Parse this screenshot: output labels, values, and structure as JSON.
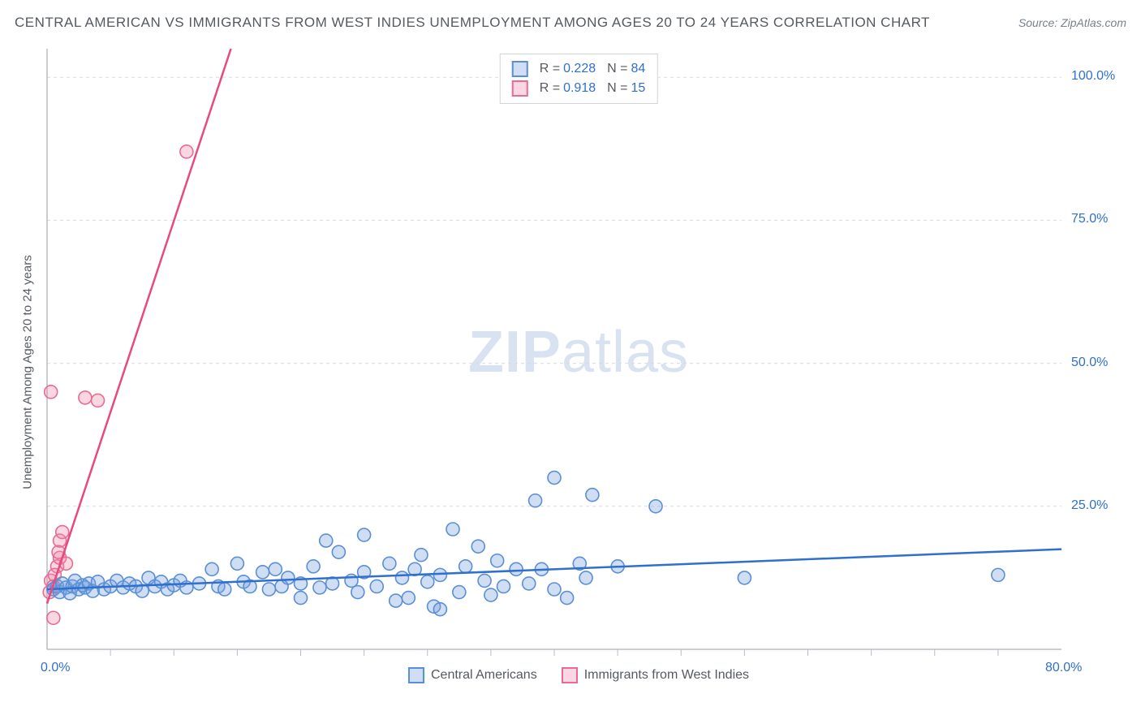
{
  "title": "CENTRAL AMERICAN VS IMMIGRANTS FROM WEST INDIES UNEMPLOYMENT AMONG AGES 20 TO 24 YEARS CORRELATION CHART",
  "source": "Source: ZipAtlas.com",
  "y_axis_label": "Unemployment Among Ages 20 to 24 years",
  "watermark_bold": "ZIP",
  "watermark_rest": "atlas",
  "chart": {
    "type": "scatter",
    "xlim": [
      0,
      80
    ],
    "ylim": [
      0,
      105
    ],
    "x_ticks": [
      0,
      80
    ],
    "x_tick_labels": [
      "0.0%",
      "80.0%"
    ],
    "y_ticks": [
      25,
      50,
      75,
      100
    ],
    "y_tick_labels": [
      "25.0%",
      "50.0%",
      "75.0%",
      "100.0%"
    ],
    "grid_color": "#d8dce0",
    "axis_color": "#b8bec5",
    "background": "#ffffff",
    "marker_radius": 8,
    "marker_stroke_width": 1.6,
    "line_width": 2.5
  },
  "series": [
    {
      "name": "Central Americans",
      "fill": "rgba(120,160,220,0.35)",
      "stroke": "#5a8fd6",
      "line_color": "#2f6fd0",
      "R": "0.228",
      "N": "84",
      "trend": {
        "x1": 0,
        "y1": 10.5,
        "x2": 80,
        "y2": 17.5
      },
      "points": [
        [
          0.5,
          10.5
        ],
        [
          0.8,
          11
        ],
        [
          1,
          10
        ],
        [
          1.2,
          11.5
        ],
        [
          1.5,
          10.8
        ],
        [
          1.8,
          9.8
        ],
        [
          2,
          11
        ],
        [
          2.2,
          12
        ],
        [
          2.5,
          10.5
        ],
        [
          2.8,
          11.2
        ],
        [
          3,
          10.8
        ],
        [
          3.3,
          11.5
        ],
        [
          3.6,
          10.2
        ],
        [
          4,
          11.8
        ],
        [
          4.5,
          10.5
        ],
        [
          5,
          11
        ],
        [
          5.5,
          12
        ],
        [
          6,
          10.8
        ],
        [
          6.5,
          11.5
        ],
        [
          7,
          11
        ],
        [
          7.5,
          10.2
        ],
        [
          8,
          12.5
        ],
        [
          8.5,
          11
        ],
        [
          9,
          11.8
        ],
        [
          9.5,
          10.5
        ],
        [
          10,
          11.2
        ],
        [
          10.5,
          12
        ],
        [
          11,
          10.8
        ],
        [
          12,
          11.5
        ],
        [
          13,
          14
        ],
        [
          13.5,
          11
        ],
        [
          14,
          10.5
        ],
        [
          15,
          15
        ],
        [
          15.5,
          11.8
        ],
        [
          16,
          11
        ],
        [
          17,
          13.5
        ],
        [
          17.5,
          10.5
        ],
        [
          18,
          14
        ],
        [
          18.5,
          11
        ],
        [
          19,
          12.5
        ],
        [
          20,
          11.5
        ],
        [
          20,
          9
        ],
        [
          21,
          14.5
        ],
        [
          21.5,
          10.8
        ],
        [
          22,
          19
        ],
        [
          22.5,
          11.5
        ],
        [
          23,
          17
        ],
        [
          24,
          12
        ],
        [
          24.5,
          10
        ],
        [
          25,
          13.5
        ],
        [
          25,
          20
        ],
        [
          26,
          11
        ],
        [
          27,
          15
        ],
        [
          27.5,
          8.5
        ],
        [
          28,
          12.5
        ],
        [
          28.5,
          9
        ],
        [
          29,
          14
        ],
        [
          29.5,
          16.5
        ],
        [
          30,
          11.8
        ],
        [
          30.5,
          7.5
        ],
        [
          31,
          13
        ],
        [
          31,
          7
        ],
        [
          32,
          21
        ],
        [
          32.5,
          10
        ],
        [
          33,
          14.5
        ],
        [
          34,
          18
        ],
        [
          34.5,
          12
        ],
        [
          35,
          9.5
        ],
        [
          35.5,
          15.5
        ],
        [
          36,
          11
        ],
        [
          37,
          14
        ],
        [
          38,
          11.5
        ],
        [
          38.5,
          26
        ],
        [
          39,
          14
        ],
        [
          40,
          10.5
        ],
        [
          40,
          30
        ],
        [
          41,
          9
        ],
        [
          42,
          15
        ],
        [
          42.5,
          12.5
        ],
        [
          43,
          27
        ],
        [
          45,
          14.5
        ],
        [
          48,
          25
        ],
        [
          55,
          12.5
        ],
        [
          75,
          13
        ]
      ]
    },
    {
      "name": "Immigrants from West Indies",
      "fill": "rgba(240,140,170,0.35)",
      "stroke": "#e86b95",
      "line_color": "#e84a7e",
      "R": "0.918",
      "N": "15",
      "trend": {
        "x1": 0,
        "y1": 8,
        "x2": 14.5,
        "y2": 105
      },
      "points": [
        [
          0.2,
          10
        ],
        [
          0.3,
          12
        ],
        [
          0.5,
          11
        ],
        [
          0.8,
          14.5
        ],
        [
          1,
          16
        ],
        [
          1,
          19
        ],
        [
          1.2,
          20.5
        ],
        [
          1.5,
          15
        ],
        [
          0.5,
          5.5
        ],
        [
          0.3,
          45
        ],
        [
          3,
          44
        ],
        [
          4,
          43.5
        ],
        [
          11,
          87
        ],
        [
          0.6,
          13
        ],
        [
          0.9,
          17
        ]
      ]
    }
  ],
  "stats_legend": {
    "R_label": "R =",
    "N_label": "N ="
  },
  "bottom_legend": {
    "series1": "Central Americans",
    "series2": "Immigrants from West Indies"
  }
}
